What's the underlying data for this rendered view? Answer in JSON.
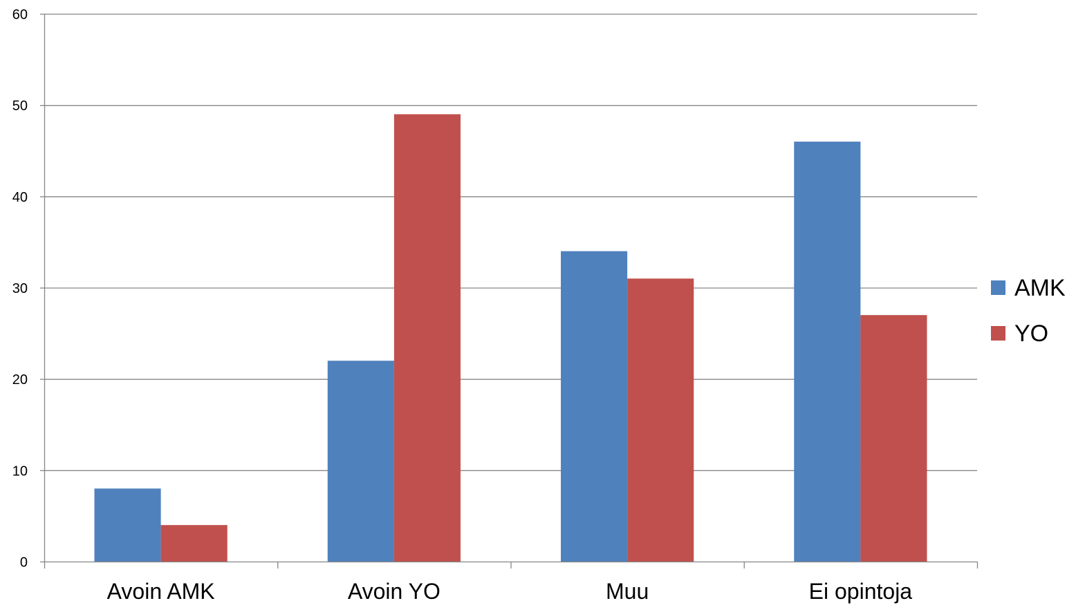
{
  "chart_data": {
    "type": "bar",
    "title": "",
    "xlabel": "",
    "ylabel": "",
    "categories": [
      "Avoin AMK",
      "Avoin YO",
      "Muu",
      "Ei opintoja"
    ],
    "series": [
      {
        "name": "AMK",
        "values": [
          8,
          22,
          34,
          46
        ],
        "color": "#4F81BD"
      },
      {
        "name": "YO",
        "values": [
          4,
          49,
          31,
          27
        ],
        "color": "#C0504D"
      }
    ],
    "ylim": [
      0,
      60
    ],
    "yticks": [
      "0",
      "10",
      "20",
      "30",
      "40",
      "50",
      "60"
    ],
    "grid": true,
    "legend_position": "right",
    "gridline_color": "#868686",
    "axis_color": "#868686"
  }
}
